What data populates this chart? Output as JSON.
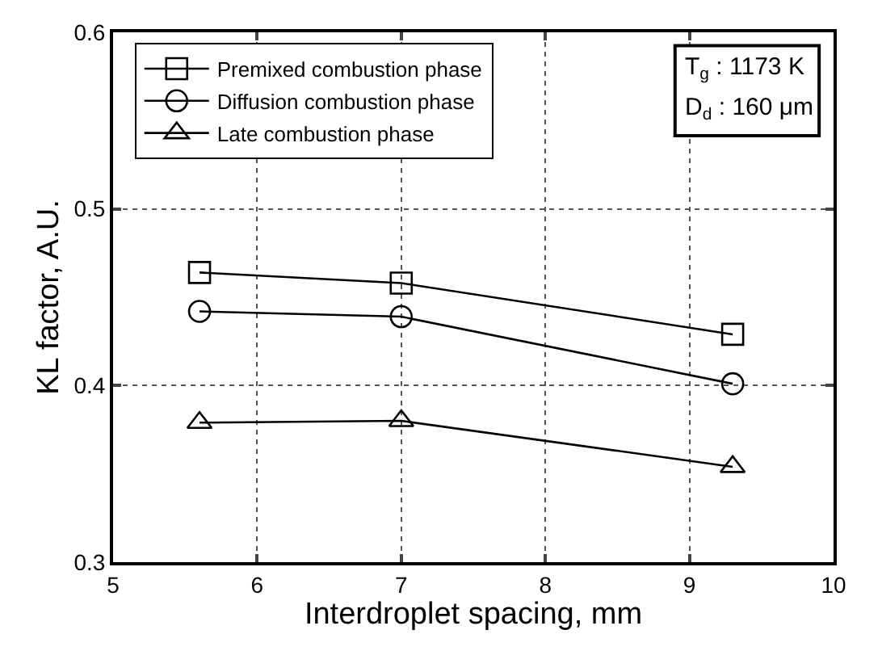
{
  "chart_data": {
    "type": "line",
    "xlabel": "Interdroplet spacing, mm",
    "ylabel": "KL factor, A.U.",
    "x": [
      5.6,
      7,
      9.3
    ],
    "series": [
      {
        "name": "Premixed combustion phase",
        "color": "#000000",
        "marker": "square",
        "values": [
          0.464,
          0.458,
          0.429
        ]
      },
      {
        "name": "Diffusion combustion phase",
        "color": "#000000",
        "marker": "circle",
        "values": [
          0.442,
          0.439,
          0.401
        ]
      },
      {
        "name": "Late combustion phase",
        "color": "#000000",
        "marker": "triangle",
        "values": [
          0.379,
          0.38,
          0.354
        ]
      }
    ],
    "xlim": [
      5,
      10
    ],
    "xticks": [
      5,
      6,
      7,
      8,
      9,
      10
    ],
    "ylim": [
      0.3,
      0.6
    ],
    "yticks": [
      0.3,
      0.4,
      0.5,
      0.6
    ],
    "grid": true,
    "legend": "top left",
    "line_style": "solid",
    "annotations": [
      "T$_{g}$ : 1173 K",
      "D$_{d}$ : 160 μm"
    ]
  }
}
